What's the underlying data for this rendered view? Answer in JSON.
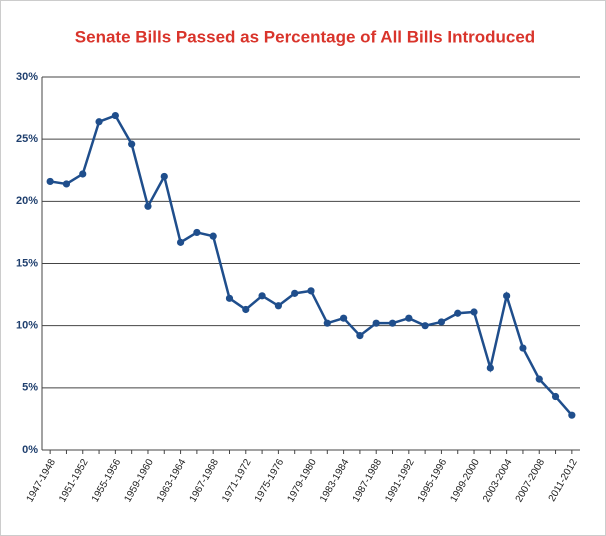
{
  "chart_data": {
    "type": "line",
    "title": "Senate Bills Passed as Percentage of All Bills Introduced",
    "categories": [
      "1947-1948",
      null,
      "1951-1952",
      null,
      "1955-1956",
      null,
      "1959-1960",
      null,
      "1963-1964",
      null,
      "1967-1968",
      null,
      "1971-1972",
      null,
      "1975-1976",
      null,
      "1979-1980",
      null,
      "1983-1984",
      null,
      "1987-1988",
      null,
      "1991-1992",
      null,
      "1995-1996",
      null,
      "1999-2000",
      null,
      "2003-2004",
      null,
      "2007-2008",
      null,
      "2011-2012"
    ],
    "values": [
      21.6,
      21.4,
      22.2,
      26.4,
      26.9,
      24.6,
      19.6,
      22.0,
      16.7,
      17.5,
      17.2,
      12.2,
      11.3,
      12.4,
      11.6,
      12.6,
      12.8,
      10.2,
      10.6,
      9.2,
      10.2,
      10.2,
      10.6,
      10.0,
      10.3,
      11.0,
      11.1,
      6.6,
      12.4,
      8.2,
      5.7,
      4.3,
      2.8
    ],
    "color": "#1f4e8c",
    "ylim": [
      0,
      30
    ],
    "yticks": [
      {
        "value": 0,
        "label": "0%"
      },
      {
        "value": 5,
        "label": "5%"
      },
      {
        "value": 10,
        "label": "10%"
      },
      {
        "value": 15,
        "label": "15%"
      },
      {
        "value": 20,
        "label": "20%"
      },
      {
        "value": 25,
        "label": "25%"
      },
      {
        "value": 30,
        "label": "30%"
      }
    ],
    "grid": true
  }
}
